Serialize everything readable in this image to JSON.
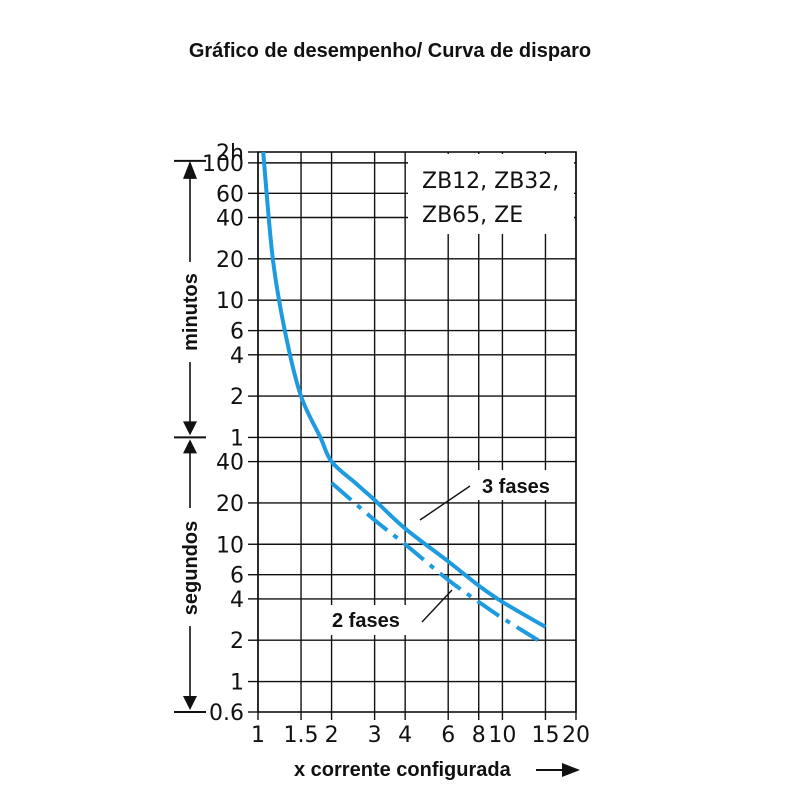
{
  "title": "Gráfico de desempenho/ Curva de disparo",
  "chart_data": {
    "type": "line",
    "xlabel": "x corrente configurada",
    "x_scale": "log",
    "xlim": [
      1,
      20
    ],
    "x_ticks": [
      "1",
      "1.5",
      "2",
      "3",
      "4",
      "6",
      "8",
      "10",
      "15",
      "20"
    ],
    "y_scale": "log",
    "y_range_labels": [
      "0.6",
      "2h"
    ],
    "y_ticks": [
      "2h",
      "100",
      "60",
      "40",
      "20",
      "10",
      "6",
      "4",
      "2",
      "1",
      "40",
      "20",
      "10",
      "6",
      "4",
      "2",
      "1",
      "0.6"
    ],
    "y_unit_labels": [
      "minutos",
      "segundos"
    ],
    "models_label": [
      "ZB12, ZB32,",
      "ZB65, ZE"
    ],
    "grid": true,
    "series": [
      {
        "name": "3 fases",
        "style": "solid",
        "x": [
          1.05,
          1.15,
          1.3,
          1.5,
          1.8,
          2.0,
          2.5,
          3.0,
          4.0,
          6.0,
          8.0,
          10.0,
          15.0
        ],
        "y_unit": [
          "min",
          "min",
          "min",
          "min",
          "min",
          "s",
          "s",
          "s",
          "s",
          "s",
          "s",
          "s",
          "s"
        ],
        "y": [
          120,
          20,
          5.5,
          2,
          1,
          40,
          28,
          21,
          13,
          7.5,
          5,
          3.8,
          2.5
        ]
      },
      {
        "name": "2 fases",
        "style": "dash-dot",
        "x": [
          2.0,
          3.0,
          4.0,
          6.0,
          8.0,
          10.0,
          14.0
        ],
        "y_unit": [
          "s",
          "s",
          "s",
          "s",
          "s",
          "s",
          "s"
        ],
        "y": [
          28,
          15,
          10,
          5.5,
          3.8,
          2.9,
          2.0
        ]
      }
    ],
    "annotations": [
      "3 fases",
      "2 fases"
    ],
    "series_color": "#1e9be0"
  }
}
